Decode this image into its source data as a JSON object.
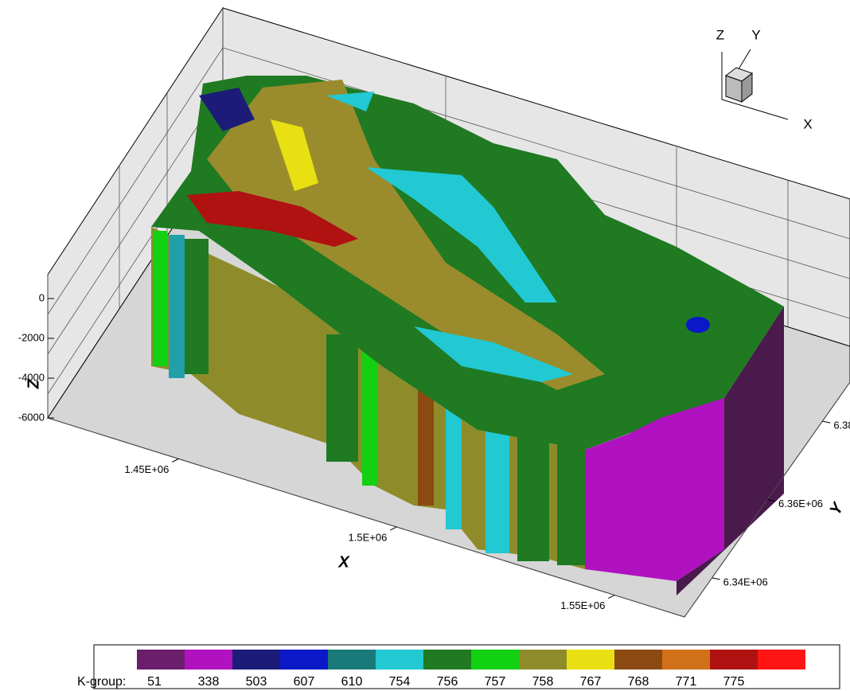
{
  "chart_data": {
    "type": "3d-block",
    "xlabel": "X",
    "ylabel": "Y",
    "zlabel": "Z",
    "xlim": [
      1420000,
      1566000
    ],
    "xticks": [
      {
        "value": 1450000,
        "label": "1.45E+06"
      },
      {
        "value": 1500000,
        "label": "1.5E+06"
      },
      {
        "value": 1550000,
        "label": "1.55E+06"
      }
    ],
    "ylim": [
      6330000,
      6390000
    ],
    "yticks": [
      {
        "value": 6340000,
        "label": "6.34E+06"
      },
      {
        "value": 6360000,
        "label": "6.36E+06"
      },
      {
        "value": 6380000,
        "label": "6.38E+06"
      }
    ],
    "zlim": [
      -6000,
      1000
    ],
    "zticks": [
      0,
      -2000,
      -4000,
      -6000
    ],
    "legend_title": "K-group:",
    "categories": [
      "51",
      "338",
      "503",
      "607",
      "610",
      "754",
      "756",
      "757",
      "758",
      "767",
      "768",
      "771",
      "775",
      null
    ],
    "colors": [
      "#6a1e6c",
      "#b012c0",
      "#1c1c78",
      "#0a18c8",
      "#1a7a7a",
      "#22c8d2",
      "#1f7a22",
      "#12d012",
      "#8e8c2a",
      "#e8e012",
      "#8a4a12",
      "#d07018",
      "#b01212",
      "#ff1414"
    ]
  }
}
